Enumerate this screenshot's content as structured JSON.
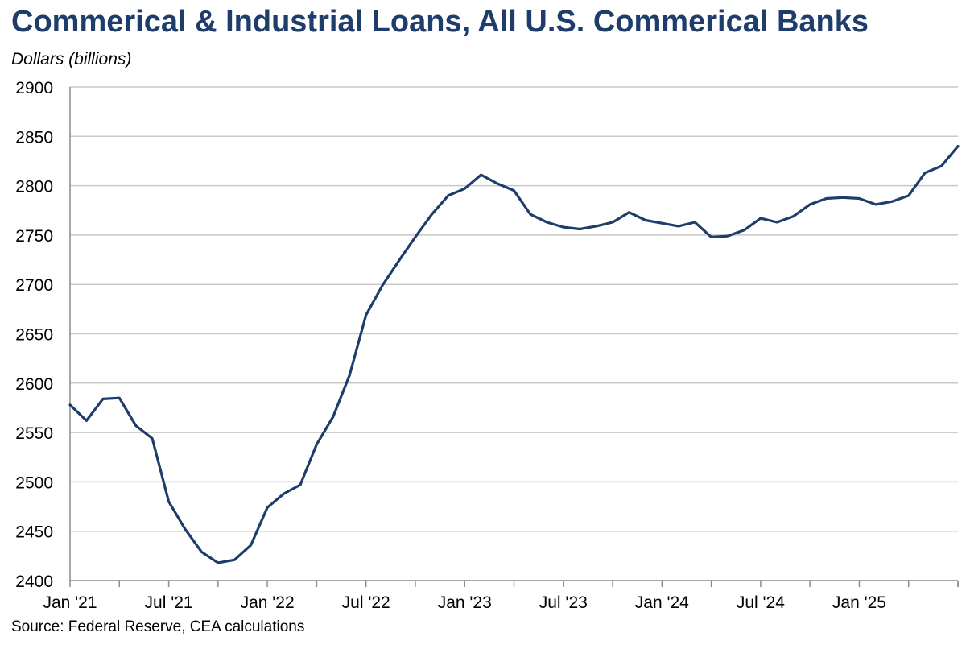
{
  "chart_data": {
    "type": "line",
    "title": "Commerical & Industrial Loans, All U.S. Commerical Banks",
    "ylabel": "Dollars (billions)",
    "xlabel": "",
    "source": "Source: Federal Reserve, CEA calculations",
    "ylim": [
      2400,
      2900
    ],
    "yticks": [
      2400,
      2450,
      2500,
      2550,
      2600,
      2650,
      2700,
      2750,
      2800,
      2850,
      2900
    ],
    "xticks": [
      "Jan '21",
      "Jul '21",
      "Jan '22",
      "Jul '22",
      "Jan '23",
      "Jul '23",
      "Jan '24",
      "Jul '24",
      "Jan '25"
    ],
    "grid": true,
    "line_color": "#1f3d6b",
    "series": [
      {
        "x": [
          "2021-01",
          "2021-02",
          "2021-03",
          "2021-04",
          "2021-05",
          "2021-06",
          "2021-07",
          "2021-08",
          "2021-09",
          "2021-10",
          "2021-11",
          "2021-12",
          "2022-01",
          "2022-02",
          "2022-03",
          "2022-04",
          "2022-05",
          "2022-06",
          "2022-07",
          "2022-08",
          "2022-09",
          "2022-10",
          "2022-11",
          "2022-12",
          "2023-01",
          "2023-02",
          "2023-03",
          "2023-04",
          "2023-05",
          "2023-06",
          "2023-07",
          "2023-08",
          "2023-09",
          "2023-10",
          "2023-11",
          "2023-12",
          "2024-01",
          "2024-02",
          "2024-03",
          "2024-04",
          "2024-05",
          "2024-06",
          "2024-07",
          "2024-08",
          "2024-09",
          "2024-10",
          "2024-11",
          "2024-12",
          "2025-01",
          "2025-02",
          "2025-03",
          "2025-04",
          "2025-05",
          "2025-06",
          "2025-07"
        ],
        "values": [
          2578,
          2562,
          2584,
          2585,
          2557,
          2544,
          2480,
          2452,
          2429,
          2418,
          2421,
          2436,
          2474,
          2488,
          2497,
          2538,
          2566,
          2608,
          2669,
          2699,
          2724,
          2748,
          2771,
          2790,
          2797,
          2811,
          2802,
          2795,
          2771,
          2763,
          2758,
          2756,
          2759,
          2763,
          2773,
          2765,
          2762,
          2759,
          2763,
          2748,
          2749,
          2755,
          2767,
          2763,
          2769,
          2781,
          2787,
          2788,
          2787,
          2781,
          2784,
          2790,
          2813,
          2820,
          2840
        ]
      }
    ]
  }
}
